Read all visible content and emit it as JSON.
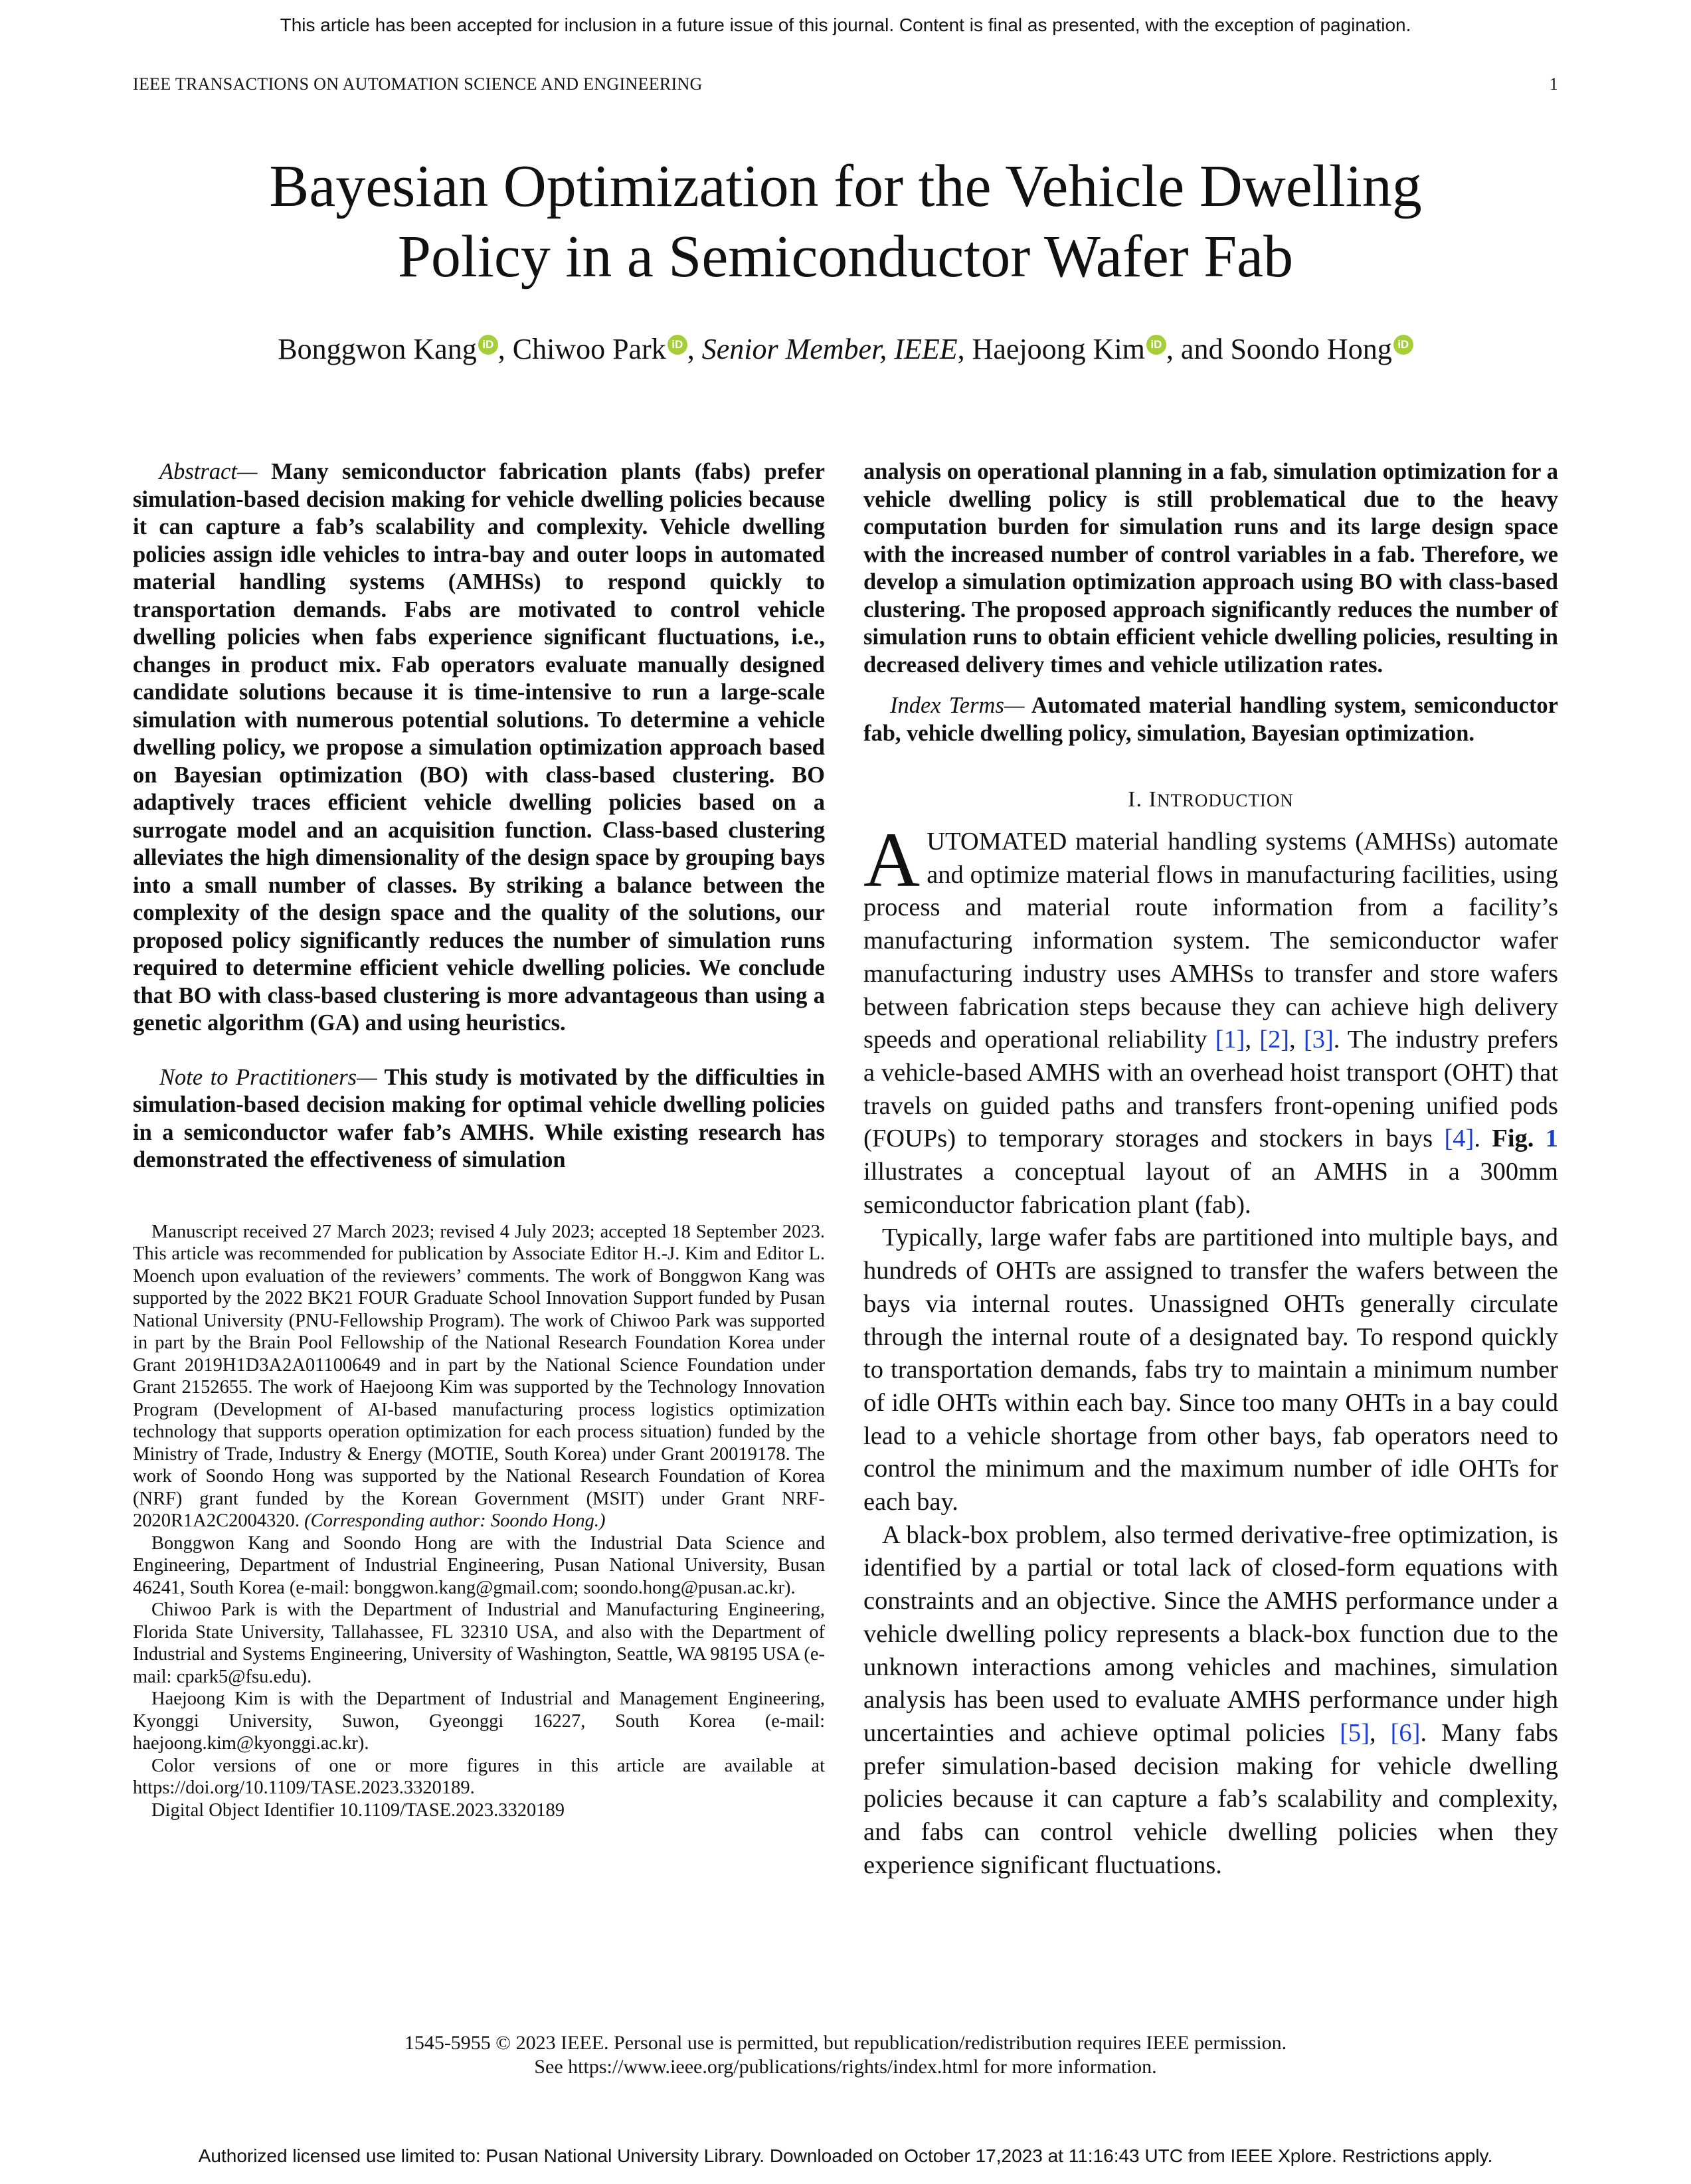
{
  "notice": "This article has been accepted for inclusion in a future issue of this journal. Content is final as presented, with the exception of pagination.",
  "running_head": {
    "journal": "IEEE TRANSACTIONS ON AUTOMATION SCIENCE AND ENGINEERING",
    "page": "1"
  },
  "title": {
    "line1": "Bayesian Optimization for the Vehicle Dwelling",
    "line2": "Policy in a Semiconductor Wafer Fab"
  },
  "authors": {
    "a1": "Bonggwon Kang",
    "a2": "Chiwoo Park",
    "a2_member": "Senior Member, IEEE",
    "a3": "Haejoong Kim",
    "a4": "Soondo Hong",
    "sep": ", ",
    "and": ", and ",
    "orcid_label": "iD"
  },
  "abstract": {
    "lead": "Abstract—",
    "text": " Many semiconductor fabrication plants (fabs) prefer simulation-based decision making for vehicle dwelling policies because it can capture a fab’s scalability and complexity. Vehicle dwelling policies assign idle vehicles to intra-bay and outer loops in automated material handling systems (AMHSs) to respond quickly to transportation demands. Fabs are motivated to control vehicle dwelling policies when fabs experience significant fluctuations, i.e., changes in product mix. Fab operators evaluate manually designed candidate solutions because it is time-intensive to run a large-scale simulation with numerous potential solutions. To determine a vehicle dwelling policy, we propose a simulation optimization approach based on Bayesian optimization (BO) with class-based clustering. BO adaptively traces efficient vehicle dwelling policies based on a surrogate model and an acquisition function. Class-based clustering alleviates the high dimensionality of the design space by grouping bays into a small number of classes. By striking a balance between the complexity of the design space and the quality of the solutions, our proposed policy significantly reduces the number of simulation runs required to determine efficient vehicle dwelling policies. We conclude that BO with class-based clustering is more advantageous than using a genetic algorithm (GA) and using heuristics."
  },
  "note": {
    "lead": "Note to Practitioners—",
    "text_left": " This study is motivated by the difficulties in simulation-based decision making for optimal vehicle dwelling policies in a semiconductor wafer fab’s AMHS. While existing research has demonstrated the effectiveness of simulation",
    "text_right": "analysis on operational planning in a fab, simulation optimization for a vehicle dwelling policy is still problematical due to the heavy computation burden for simulation runs and its large design space with the increased number of control variables in a fab. Therefore, we develop a simulation optimization approach using BO with class-based clustering. The proposed approach significantly reduces the number of simulation runs to obtain efficient vehicle dwelling policies, resulting in decreased delivery times and vehicle utilization rates."
  },
  "index_terms": {
    "lead": "Index Terms—",
    "text": " Automated material handling system, semiconductor fab, vehicle dwelling policy, simulation, Bayesian optimization."
  },
  "footnotes": {
    "p1_a": "Manuscript received 27 March 2023; revised 4 July 2023; accepted 18 September 2023. This article was recommended for publication by Associate Editor H.-J. Kim and Editor L. Moench upon evaluation of the reviewers’ comments. The work of Bonggwon Kang was supported by the 2022 BK21 FOUR Graduate School Innovation Support funded by Pusan National University (PNU-Fellowship Program). The work of Chiwoo Park was supported in part by the Brain Pool Fellowship of the National Research Foundation Korea under Grant 2019H1D3A2A01100649 and in part by the National Science Foundation under Grant 2152655. The work of Haejoong Kim was supported by the Technology Innovation Program (Development of AI-based manufacturing process logistics optimization technology that supports operation optimization for each process situation) funded by the Ministry of Trade, Industry & Energy (MOTIE, South Korea) under Grant 20019178. The work of Soondo Hong was supported by the National Research Foundation of Korea (NRF) grant funded by the Korean Government (MSIT) under Grant NRF-2020R1A2C2004320. ",
    "p1_b": "(Corresponding author: Soondo Hong.)",
    "p2": "Bonggwon Kang and Soondo Hong are with the Industrial Data Science and Engineering, Department of Industrial Engineering, Pusan National University, Busan 46241, South Korea (e-mail: bonggwon.kang@gmail.com; soondo.hong@pusan.ac.kr).",
    "p3": "Chiwoo Park is with the Department of Industrial and Manufacturing Engineering, Florida State University, Tallahassee, FL 32310 USA, and also with the Department of Industrial and Systems Engineering, University of Washington, Seattle, WA 98195 USA (e-mail: cpark5@fsu.edu).",
    "p4": "Haejoong Kim is with the Department of Industrial and Management Engineering, Kyonggi University, Suwon, Gyeonggi 16227, South Korea (e-mail: haejoong.kim@kyonggi.ac.kr).",
    "p5": "Color versions of one or more figures in this article are available at https://doi.org/10.1109/TASE.2023.3320189.",
    "p6": "Digital Object Identifier 10.1109/TASE.2023.3320189"
  },
  "introduction": {
    "heading_num": "I. ",
    "heading_big": "I",
    "heading_rest": "NTRODUCTION",
    "dropcap": "A",
    "p1_a": "UTOMATED material handling systems (AMHSs) automate and optimize material flows in manufacturing facilities, using process and material route information from a facility’s manufacturing information system. The semiconductor wafer manufacturing industry uses AMHSs to transfer and store wafers between fabrication steps because they can achieve high delivery speeds and operational reliability ",
    "ref1": "[1]",
    "ref2": "[2]",
    "ref3": "[3]",
    "p1_b": ". The industry prefers a vehicle-based AMHS with an overhead hoist transport (OHT) that travels on guided paths and transfers front-opening unified pods (FOUPs) to temporary storages and stockers in bays ",
    "ref4": "[4]",
    "fig_label": "Fig. ",
    "fig_num": "1",
    "p1_c": " illustrates a conceptual layout of an AMHS in a 300mm semiconductor fabrication plant (fab).",
    "p2": "Typically, large wafer fabs are partitioned into multiple bays, and hundreds of OHTs are assigned to transfer the wafers between the bays via internal routes. Unassigned OHTs generally circulate through the internal route of a designated bay. To respond quickly to transportation demands, fabs try to maintain a minimum number of idle OHTs within each bay. Since too many OHTs in a bay could lead to a vehicle shortage from other bays, fab operators need to control the minimum and the maximum number of idle OHTs for each bay.",
    "p3_a": "A black-box problem, also termed derivative-free optimization, is identified by a partial or total lack of closed-form equations with constraints and an objective. Since the AMHS performance under a vehicle dwelling policy represents a black-box function due to the unknown interactions among vehicles and machines, simulation analysis has been used to evaluate AMHS performance under high uncertainties and achieve optimal policies ",
    "ref5": "[5]",
    "ref6": "[6]",
    "p3_b": ". Many fabs prefer simulation-based decision making for vehicle dwelling policies because it can capture a fab’s scalability and complexity, and fabs can control vehicle dwelling policies when they experience significant fluctuations."
  },
  "copyright": {
    "line1": "1545-5955 © 2023 IEEE. Personal use is permitted, but republication/redistribution requires IEEE permission.",
    "line2": "See https://www.ieee.org/publications/rights/index.html for more information."
  },
  "authorized": "Authorized licensed use limited to: Pusan National University Library. Downloaded on October 17,2023 at 11:16:43 UTC from IEEE Xplore.  Restrictions apply.",
  "colors": {
    "link": "#1a3ecf",
    "orcid": "#a6ce39"
  }
}
